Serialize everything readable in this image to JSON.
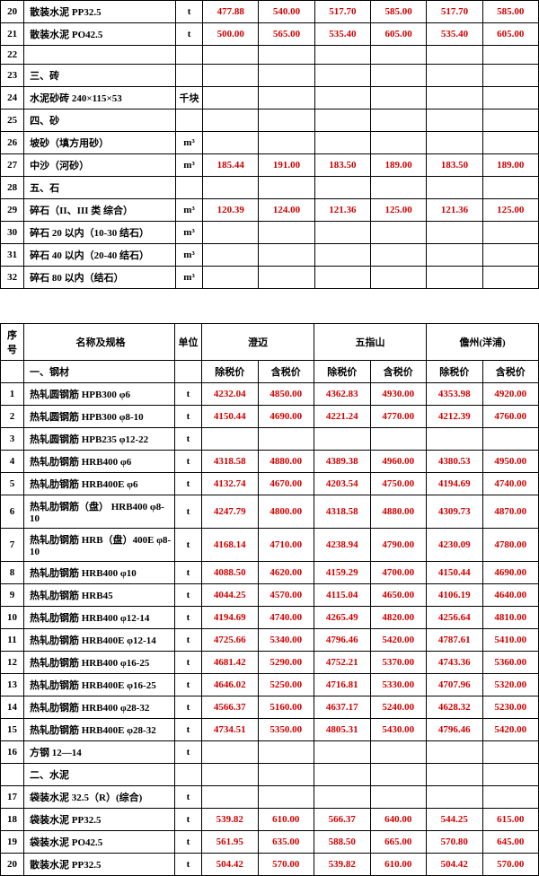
{
  "table1": {
    "rows": [
      {
        "idx": "20",
        "name": "散装水泥 PP32.5",
        "unit": "t",
        "values": [
          "477.88",
          "540.00",
          "517.70",
          "585.00",
          "517.70",
          "585.00"
        ]
      },
      {
        "idx": "21",
        "name": "散装水泥 PO42.5",
        "unit": "t",
        "values": [
          "500.00",
          "565.00",
          "535.40",
          "605.00",
          "535.40",
          "605.00"
        ]
      },
      {
        "idx": "22",
        "name": "",
        "unit": "",
        "values": [
          "",
          "",
          "",
          "",
          "",
          ""
        ]
      },
      {
        "idx": "23",
        "name": "三、砖",
        "unit": "",
        "values": [
          "",
          "",
          "",
          "",
          "",
          ""
        ]
      },
      {
        "idx": "24",
        "name": "水泥砂砖 240×115×53",
        "unit": "千块",
        "values": [
          "",
          "",
          "",
          "",
          "",
          ""
        ]
      },
      {
        "idx": "25",
        "name": "四、砂",
        "unit": "",
        "values": [
          "",
          "",
          "",
          "",
          "",
          ""
        ]
      },
      {
        "idx": "26",
        "name": "坡砂（填方用砂）",
        "unit": "m³",
        "values": [
          "",
          "",
          "",
          "",
          "",
          ""
        ]
      },
      {
        "idx": "27",
        "name": "中沙（河砂）",
        "unit": "m³",
        "values": [
          "185.44",
          "191.00",
          "183.50",
          "189.00",
          "183.50",
          "189.00"
        ]
      },
      {
        "idx": "28",
        "name": "五、石",
        "unit": "",
        "values": [
          "",
          "",
          "",
          "",
          "",
          ""
        ]
      },
      {
        "idx": "29",
        "name": "碎石（II、III 类 综合）",
        "unit": "m³",
        "values": [
          "120.39",
          "124.00",
          "121.36",
          "125.00",
          "121.36",
          "125.00"
        ]
      },
      {
        "idx": "30",
        "name": "碎石 20 以内（10-30 结石）",
        "unit": "m³",
        "values": [
          "",
          "",
          "",
          "",
          "",
          ""
        ]
      },
      {
        "idx": "31",
        "name": "碎石 40 以内（20-40 结石）",
        "unit": "m³",
        "values": [
          "",
          "",
          "",
          "",
          "",
          ""
        ]
      },
      {
        "idx": "32",
        "name": "碎石 80 以内（结石）",
        "unit": "m³",
        "values": [
          "",
          "",
          "",
          "",
          "",
          ""
        ]
      }
    ]
  },
  "table2": {
    "header": {
      "idx": "序号",
      "name": "名称及规格",
      "unit": "单位",
      "regions": [
        "澄迈",
        "五指山",
        "儋州(洋浦)"
      ],
      "sub": [
        "除税价",
        "含税价",
        "除税价",
        "含税价",
        "除税价",
        "含税价"
      ]
    },
    "rows": [
      {
        "idx": "",
        "name": "一、钢材",
        "unit": "",
        "values": [
          "",
          "",
          "",
          "",
          "",
          ""
        ],
        "firstRow": true
      },
      {
        "idx": "1",
        "name": "热轧圆钢筋 HPB300 φ6",
        "unit": "t",
        "values": [
          "4232.04",
          "4850.00",
          "4362.83",
          "4930.00",
          "4353.98",
          "4920.00"
        ]
      },
      {
        "idx": "2",
        "name": "热轧圆钢筋 HPB300 φ8-10",
        "unit": "t",
        "values": [
          "4150.44",
          "4690.00",
          "4221.24",
          "4770.00",
          "4212.39",
          "4760.00"
        ]
      },
      {
        "idx": "3",
        "name": "热轧圆钢筋 HPB235 φ12-22",
        "unit": "t",
        "values": [
          "",
          "",
          "",
          "",
          "",
          ""
        ]
      },
      {
        "idx": "4",
        "name": "热轧肋钢筋 HRB400 φ6",
        "unit": "t",
        "values": [
          "4318.58",
          "4880.00",
          "4389.38",
          "4960.00",
          "4380.53",
          "4950.00"
        ]
      },
      {
        "idx": "5",
        "name": "热轧肋钢筋 HRB400E φ6",
        "unit": "t",
        "values": [
          "4132.74",
          "4670.00",
          "4203.54",
          "4750.00",
          "4194.69",
          "4740.00"
        ]
      },
      {
        "idx": "6",
        "name": "热轧肋钢筋（盘） HRB400 φ8-10",
        "unit": "t",
        "values": [
          "4247.79",
          "4800.00",
          "4318.58",
          "4880.00",
          "4309.73",
          "4870.00"
        ]
      },
      {
        "idx": "7",
        "name": "热轧肋钢筋 HRB（盘）400E φ8-10",
        "unit": "t",
        "values": [
          "4168.14",
          "4710.00",
          "4238.94",
          "4790.00",
          "4230.09",
          "4780.00"
        ]
      },
      {
        "idx": "8",
        "name": "热轧肋钢筋 HRB400 φ10",
        "unit": "t",
        "values": [
          "4088.50",
          "4620.00",
          "4159.29",
          "4700.00",
          "4150.44",
          "4690.00"
        ]
      },
      {
        "idx": "9",
        "name": "热轧肋钢筋 HRB45",
        "unit": "t",
        "values": [
          "4044.25",
          "4570.00",
          "4115.04",
          "4650.00",
          "4106.19",
          "4640.00"
        ]
      },
      {
        "idx": "10",
        "name": "热轧肋钢筋 HRB400 φ12-14",
        "unit": "t",
        "values": [
          "4194.69",
          "4740.00",
          "4265.49",
          "4820.00",
          "4256.64",
          "4810.00"
        ]
      },
      {
        "idx": "11",
        "name": "热轧肋钢筋 HRB400E φ12-14",
        "unit": "t",
        "values": [
          "4725.66",
          "5340.00",
          "4796.46",
          "5420.00",
          "4787.61",
          "5410.00"
        ]
      },
      {
        "idx": "12",
        "name": "热轧肋钢筋 HRB400 φ16-25",
        "unit": "t",
        "values": [
          "4681.42",
          "5290.00",
          "4752.21",
          "5370.00",
          "4743.36",
          "5360.00"
        ]
      },
      {
        "idx": "13",
        "name": "热轧肋钢筋 HRB400E φ16-25",
        "unit": "t",
        "values": [
          "4646.02",
          "5250.00",
          "4716.81",
          "5330.00",
          "4707.96",
          "5320.00"
        ]
      },
      {
        "idx": "14",
        "name": "热轧肋钢筋 HRB400 φ28-32",
        "unit": "t",
        "values": [
          "4566.37",
          "5160.00",
          "4637.17",
          "5240.00",
          "4628.32",
          "5230.00"
        ]
      },
      {
        "idx": "15",
        "name": "热轧肋钢筋 HRB400E φ28-32",
        "unit": "t",
        "values": [
          "4734.51",
          "5350.00",
          "4805.31",
          "5430.00",
          "4796.46",
          "5420.00"
        ]
      },
      {
        "idx": "16",
        "name": "方钢 12—14",
        "unit": "t",
        "values": [
          "",
          "",
          "",
          "",
          "",
          ""
        ]
      },
      {
        "idx": "",
        "name": "二、水泥",
        "unit": "",
        "values": [
          "",
          "",
          "",
          "",
          "",
          ""
        ]
      },
      {
        "idx": "17",
        "name": "袋装水泥 32.5（R）(综合)",
        "unit": "t",
        "values": [
          "",
          "",
          "",
          "",
          "",
          ""
        ]
      },
      {
        "idx": "18",
        "name": "袋装水泥 PP32.5",
        "unit": "t",
        "values": [
          "539.82",
          "610.00",
          "566.37",
          "640.00",
          "544.25",
          "615.00"
        ]
      },
      {
        "idx": "19",
        "name": "袋装水泥 PO42.5",
        "unit": "t",
        "values": [
          "561.95",
          "635.00",
          "588.50",
          "665.00",
          "570.80",
          "645.00"
        ]
      },
      {
        "idx": "20",
        "name": "散装水泥 PP32.5",
        "unit": "t",
        "values": [
          "504.42",
          "570.00",
          "539.82",
          "610.00",
          "504.42",
          "570.00"
        ]
      }
    ]
  }
}
